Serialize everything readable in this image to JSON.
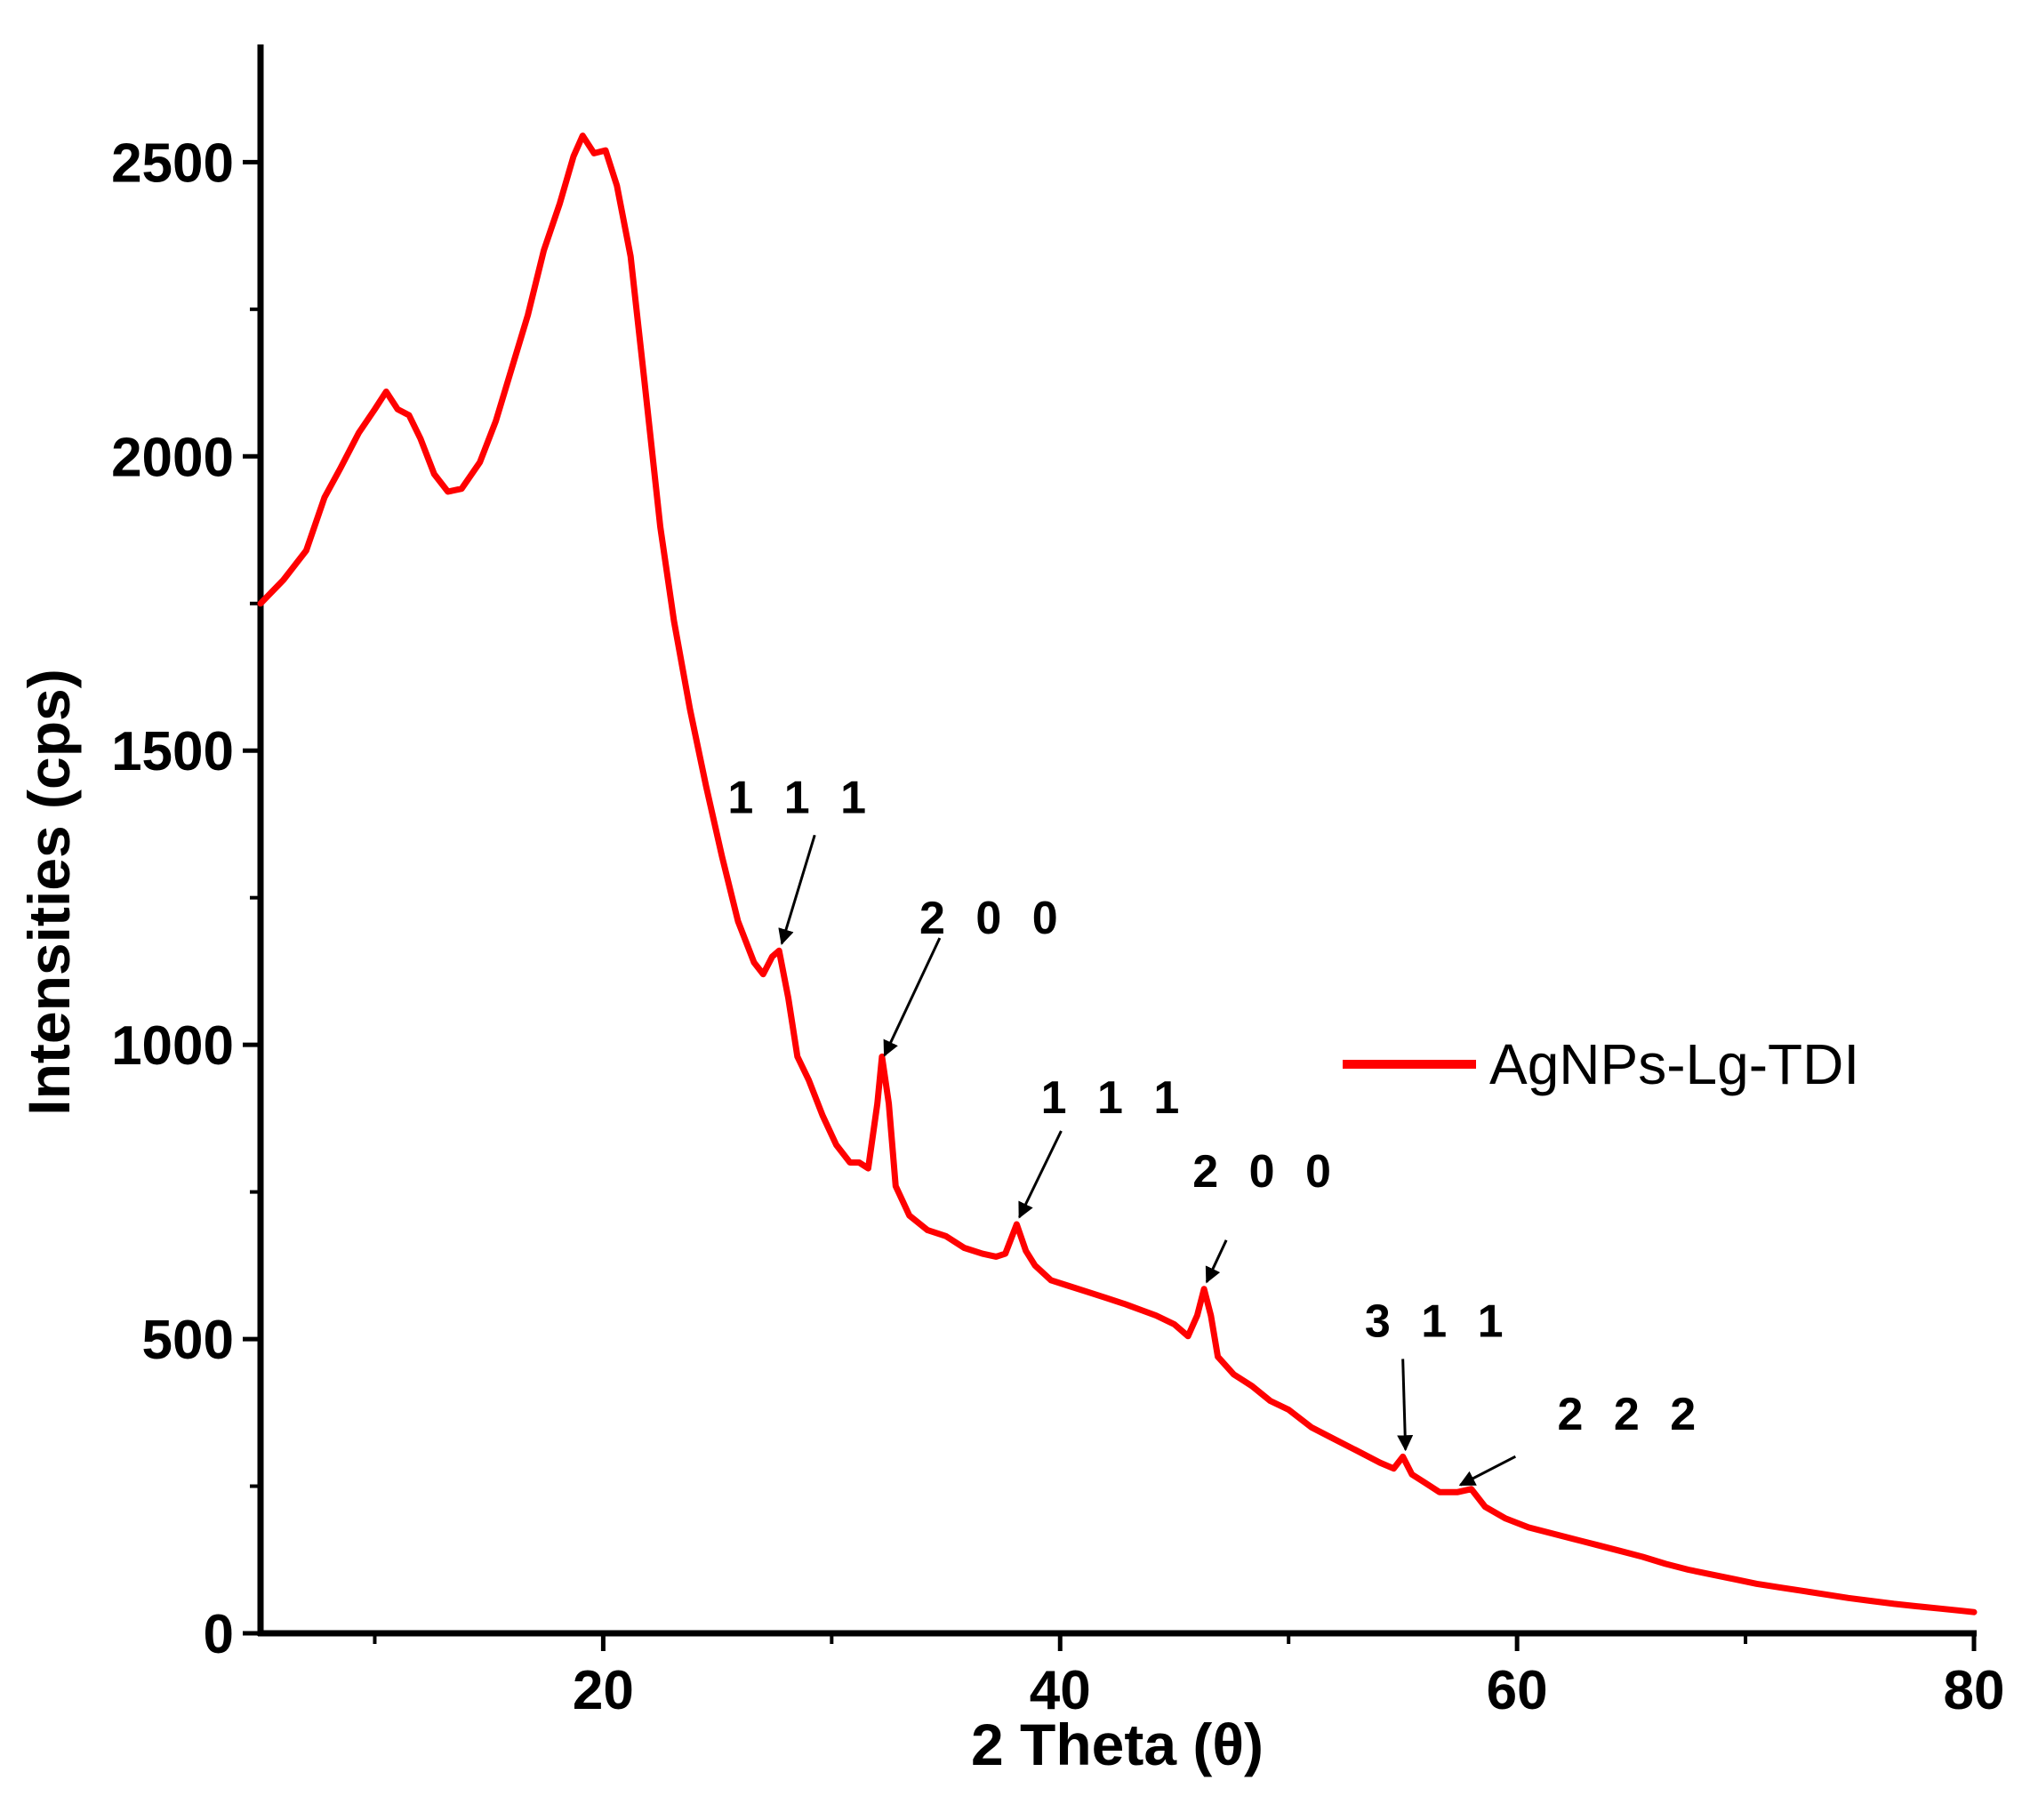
{
  "chart_data": {
    "type": "line",
    "xlabel": "2 Theta (θ)",
    "ylabel": "Intensities (cps)",
    "xlim": [
      5,
      80
    ],
    "ylim": [
      0,
      2700
    ],
    "x_ticks": [
      20,
      40,
      60,
      80
    ],
    "y_ticks": [
      0,
      500,
      1000,
      1500,
      2000,
      2500
    ],
    "grid": false,
    "legend_position": "right",
    "series": [
      {
        "name": "AgNPs-Lg-TDI",
        "color": "#ff0000",
        "points": [
          [
            5.0,
            1750
          ],
          [
            6.0,
            1790
          ],
          [
            7.0,
            1840
          ],
          [
            7.8,
            1930
          ],
          [
            8.5,
            1980
          ],
          [
            9.3,
            2040
          ],
          [
            10.0,
            2080
          ],
          [
            10.5,
            2110
          ],
          [
            11.0,
            2080
          ],
          [
            11.5,
            2070
          ],
          [
            12.0,
            2030
          ],
          [
            12.6,
            1970
          ],
          [
            13.2,
            1940
          ],
          [
            13.8,
            1945
          ],
          [
            14.6,
            1990
          ],
          [
            15.3,
            2060
          ],
          [
            16.0,
            2150
          ],
          [
            16.7,
            2240
          ],
          [
            17.4,
            2350
          ],
          [
            18.1,
            2430
          ],
          [
            18.7,
            2510
          ],
          [
            19.1,
            2545
          ],
          [
            19.6,
            2515
          ],
          [
            20.1,
            2520
          ],
          [
            20.6,
            2460
          ],
          [
            21.2,
            2340
          ],
          [
            21.8,
            2130
          ],
          [
            22.5,
            1880
          ],
          [
            23.1,
            1720
          ],
          [
            23.8,
            1570
          ],
          [
            24.5,
            1440
          ],
          [
            25.2,
            1320
          ],
          [
            25.9,
            1210
          ],
          [
            26.6,
            1140
          ],
          [
            27.0,
            1120
          ],
          [
            27.4,
            1150
          ],
          [
            27.7,
            1160
          ],
          [
            28.1,
            1080
          ],
          [
            28.5,
            980
          ],
          [
            29.0,
            940
          ],
          [
            29.6,
            880
          ],
          [
            30.2,
            830
          ],
          [
            30.8,
            800
          ],
          [
            31.2,
            800
          ],
          [
            31.6,
            790
          ],
          [
            32.0,
            900
          ],
          [
            32.2,
            980
          ],
          [
            32.5,
            900
          ],
          [
            32.8,
            760
          ],
          [
            33.4,
            710
          ],
          [
            34.2,
            685
          ],
          [
            35.0,
            675
          ],
          [
            35.8,
            655
          ],
          [
            36.6,
            645
          ],
          [
            37.2,
            640
          ],
          [
            37.6,
            645
          ],
          [
            38.1,
            695
          ],
          [
            38.5,
            650
          ],
          [
            38.9,
            625
          ],
          [
            39.6,
            600
          ],
          [
            40.4,
            590
          ],
          [
            41.2,
            580
          ],
          [
            42.0,
            570
          ],
          [
            42.8,
            560
          ],
          [
            43.5,
            550
          ],
          [
            44.2,
            540
          ],
          [
            45.0,
            525
          ],
          [
            45.6,
            505
          ],
          [
            46.0,
            540
          ],
          [
            46.3,
            585
          ],
          [
            46.6,
            540
          ],
          [
            46.9,
            470
          ],
          [
            47.6,
            440
          ],
          [
            48.4,
            420
          ],
          [
            49.2,
            395
          ],
          [
            50.0,
            380
          ],
          [
            51.0,
            350
          ],
          [
            52.0,
            330
          ],
          [
            53.0,
            310
          ],
          [
            54.0,
            290
          ],
          [
            54.6,
            280
          ],
          [
            55.0,
            300
          ],
          [
            55.4,
            270
          ],
          [
            56.0,
            255
          ],
          [
            56.6,
            240
          ],
          [
            57.4,
            240
          ],
          [
            58.0,
            245
          ],
          [
            58.6,
            215
          ],
          [
            59.5,
            195
          ],
          [
            60.5,
            180
          ],
          [
            61.5,
            170
          ],
          [
            62.5,
            160
          ],
          [
            63.5,
            150
          ],
          [
            64.5,
            140
          ],
          [
            65.5,
            130
          ],
          [
            66.5,
            118
          ],
          [
            67.5,
            108
          ],
          [
            68.5,
            100
          ],
          [
            69.5,
            92
          ],
          [
            70.5,
            84
          ],
          [
            71.5,
            78
          ],
          [
            72.5,
            72
          ],
          [
            73.5,
            66
          ],
          [
            74.5,
            60
          ],
          [
            75.5,
            55
          ],
          [
            76.5,
            50
          ],
          [
            77.5,
            46
          ],
          [
            78.5,
            42
          ],
          [
            79.5,
            38
          ],
          [
            80.0,
            36
          ]
        ]
      }
    ],
    "annotations": [
      {
        "label": "1 1 1",
        "x": 27.7,
        "y": 1160
      },
      {
        "label": "2 0 0",
        "x": 32.2,
        "y": 970
      },
      {
        "label": "1 1 1",
        "x": 38.1,
        "y": 695
      },
      {
        "label": "2 0 0",
        "x": 46.3,
        "y": 585
      },
      {
        "label": "3 1 1",
        "x": 55.0,
        "y": 300
      },
      {
        "label": "2 2 2",
        "x": 57.4,
        "y": 240
      }
    ]
  }
}
